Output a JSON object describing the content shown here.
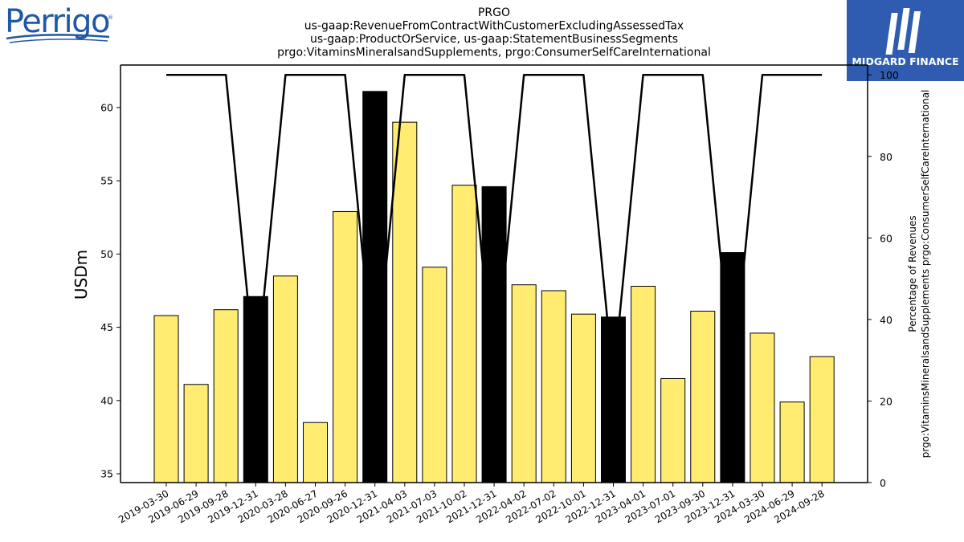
{
  "logos": {
    "left_text": "Perrigo",
    "left_mark": "®",
    "right_text": "MIDGARD FINANCE"
  },
  "colors": {
    "bar_default": "#ffec70",
    "bar_highlight": "#000000",
    "line": "#000000",
    "brand_right": "#2f5cb0",
    "brand_left": "#1f58a5"
  },
  "chart_data": {
    "type": "bar",
    "title_lines": [
      "PRGO",
      "us-gaap:RevenueFromContractWithCustomerExcludingAssessedTax",
      "us-gaap:ProductOrService, us-gaap:StatementBusinessSegments",
      "prgo:VitaminsMineralsandSupplements, prgo:ConsumerSelfCareInternational"
    ],
    "ylabel": "USDm",
    "ylabel_right_lines": [
      "Percentage of Revenues",
      "prgo:VitaminsMineralsandSupplements prgo:ConsumerSelfCareInternational"
    ],
    "categories": [
      "2019-03-30",
      "2019-06-29",
      "2019-09-28",
      "2019-12-31",
      "2020-03-28",
      "2020-06-27",
      "2020-09-26",
      "2020-12-31",
      "2021-04-03",
      "2021-07-03",
      "2021-10-02",
      "2021-12-31",
      "2022-04-02",
      "2022-07-02",
      "2022-10-01",
      "2022-12-31",
      "2023-04-01",
      "2023-07-01",
      "2023-09-30",
      "2023-12-31",
      "2024-03-30",
      "2024-06-29",
      "2024-09-28"
    ],
    "series": [
      {
        "values": [
          45.8,
          41.1,
          46.2,
          47.1,
          48.5,
          38.5,
          52.9,
          61.1,
          59.0,
          49.1,
          54.7,
          54.6,
          47.9,
          47.5,
          45.9,
          45.7,
          47.8,
          41.5,
          46.1,
          50.1,
          44.6,
          39.9,
          43.0
        ],
        "highlight": [
          false,
          false,
          false,
          true,
          false,
          false,
          false,
          true,
          false,
          false,
          false,
          true,
          false,
          false,
          false,
          true,
          false,
          false,
          false,
          true,
          false,
          false,
          false
        ],
        "axis": "left"
      },
      {
        "type": "line",
        "values": [
          100,
          100,
          100,
          25,
          100,
          100,
          100,
          25,
          100,
          100,
          100,
          25,
          100,
          100,
          100,
          25,
          100,
          100,
          100,
          25,
          100,
          100,
          100
        ],
        "axis": "right"
      }
    ],
    "ylim": [
      34.4,
      62.9
    ],
    "yticks": [
      35,
      40,
      45,
      50,
      55,
      60
    ],
    "y2lim": [
      0,
      102.4
    ],
    "y2ticks": [
      0,
      20,
      40,
      60,
      80,
      100
    ],
    "grid": false,
    "legend": "none"
  }
}
